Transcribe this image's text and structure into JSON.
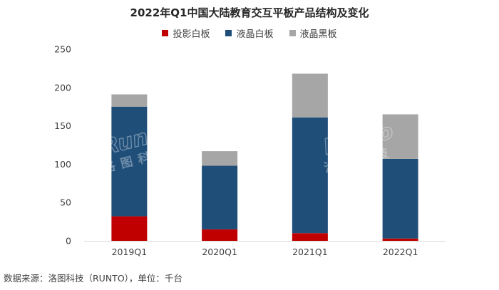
{
  "chart_data": {
    "type": "bar",
    "stacked": true,
    "title": "2022年Q1中国大陆教育交互平板产品结构及变化",
    "categories": [
      "2019Q1",
      "2020Q1",
      "2021Q1",
      "2022Q1"
    ],
    "series": [
      {
        "name": "投影白板",
        "color": "#c00000",
        "values": [
          32,
          15,
          10,
          3
        ]
      },
      {
        "name": "液晶白板",
        "color": "#1f4e79",
        "values": [
          143,
          83,
          151,
          104
        ]
      },
      {
        "name": "液晶黑板",
        "color": "#a6a6a6",
        "values": [
          16,
          19,
          57,
          58
        ]
      }
    ],
    "ylim": [
      0,
      250
    ],
    "yticks": [
      0,
      50,
      100,
      150,
      200,
      250
    ],
    "legend_position": "top",
    "grid": false
  },
  "watermark": {
    "latin": "Runto",
    "chinese": "洛图科技"
  },
  "source_note": "数据来源：洛图科技（RUNTO），单位：千台"
}
